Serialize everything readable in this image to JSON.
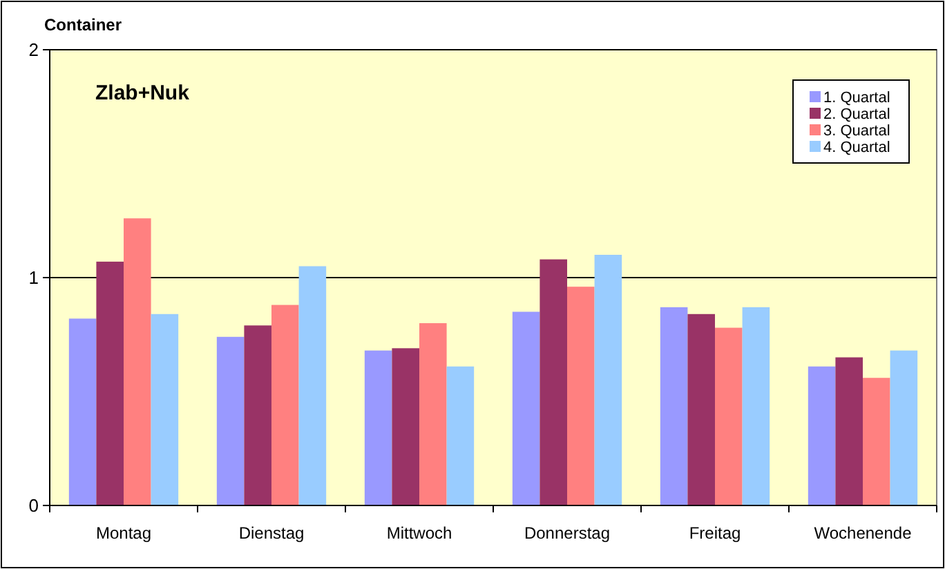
{
  "chart_data": {
    "type": "bar",
    "title": "Zlab+Nuk",
    "ylabel": "Container",
    "categories": [
      "Montag",
      "Dienstag",
      "Mittwoch",
      "Donnerstag",
      "Freitag",
      "Wochenende"
    ],
    "series": [
      {
        "name": "1. Quartal",
        "color": "#9999ff",
        "values": [
          0.82,
          0.74,
          0.68,
          0.85,
          0.87,
          0.61
        ]
      },
      {
        "name": "2. Quartal",
        "color": "#993366",
        "values": [
          1.07,
          0.79,
          0.69,
          1.08,
          0.84,
          0.65
        ]
      },
      {
        "name": "3. Quartal",
        "color": "#ff8080",
        "values": [
          1.26,
          0.88,
          0.8,
          0.96,
          0.78,
          0.56
        ]
      },
      {
        "name": "4. Quartal",
        "color": "#99ccff",
        "values": [
          0.84,
          1.05,
          0.61,
          1.1,
          0.87,
          0.68
        ]
      }
    ],
    "ylim": [
      0,
      2
    ],
    "yticks": [
      0,
      1,
      2
    ],
    "grid": "y",
    "legend": "top right"
  }
}
